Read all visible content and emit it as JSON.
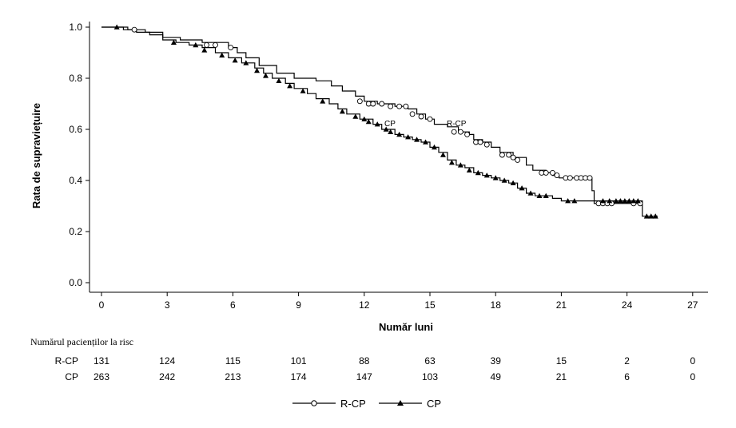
{
  "chart_data": {
    "type": "line",
    "title": "",
    "xlabel": "Număr luni",
    "ylabel": "Rata de supraviețuire",
    "xlim": [
      0,
      27
    ],
    "ylim": [
      0,
      1.0
    ],
    "x_ticks": [
      "0",
      "3",
      "6",
      "9",
      "12",
      "15",
      "18",
      "21",
      "24",
      "27"
    ],
    "y_ticks": [
      "0.0",
      "0.2",
      "0.4",
      "0.6",
      "0.8",
      "1.0"
    ],
    "legend": {
      "placement": "bottom-center"
    },
    "series": [
      {
        "name": "R-CP",
        "marker": "open-circle",
        "color": "#000000",
        "label_at": [
          15.8,
          0.62
        ],
        "steps": [
          [
            0,
            1.0
          ],
          [
            1.2,
            0.99
          ],
          [
            2.0,
            0.98
          ],
          [
            2.8,
            0.96
          ],
          [
            3.6,
            0.95
          ],
          [
            4.6,
            0.94
          ],
          [
            5.8,
            0.92
          ],
          [
            6.2,
            0.9
          ],
          [
            6.6,
            0.88
          ],
          [
            7.2,
            0.85
          ],
          [
            8.0,
            0.82
          ],
          [
            8.8,
            0.8
          ],
          [
            9.8,
            0.79
          ],
          [
            10.5,
            0.77
          ],
          [
            11.0,
            0.75
          ],
          [
            11.6,
            0.73
          ],
          [
            12.0,
            0.71
          ],
          [
            12.6,
            0.7
          ],
          [
            13.4,
            0.69
          ],
          [
            14.0,
            0.68
          ],
          [
            14.4,
            0.66
          ],
          [
            14.8,
            0.64
          ],
          [
            15.2,
            0.62
          ],
          [
            15.8,
            0.61
          ],
          [
            16.3,
            0.59
          ],
          [
            16.8,
            0.58
          ],
          [
            17.0,
            0.56
          ],
          [
            17.4,
            0.55
          ],
          [
            17.8,
            0.53
          ],
          [
            18.2,
            0.51
          ],
          [
            18.8,
            0.49
          ],
          [
            19.4,
            0.46
          ],
          [
            19.7,
            0.44
          ],
          [
            20.3,
            0.43
          ],
          [
            20.6,
            0.42
          ],
          [
            20.9,
            0.41
          ],
          [
            22.4,
            0.36
          ],
          [
            22.5,
            0.31
          ],
          [
            24.7,
            0.31
          ]
        ],
        "censored": [
          [
            1.5,
            0.99
          ],
          [
            4.8,
            0.93
          ],
          [
            5.2,
            0.93
          ],
          [
            5.9,
            0.92
          ],
          [
            11.8,
            0.71
          ],
          [
            12.2,
            0.7
          ],
          [
            12.4,
            0.7
          ],
          [
            12.8,
            0.7
          ],
          [
            13.2,
            0.69
          ],
          [
            13.6,
            0.69
          ],
          [
            13.9,
            0.69
          ],
          [
            14.2,
            0.66
          ],
          [
            14.6,
            0.65
          ],
          [
            15.0,
            0.64
          ],
          [
            16.1,
            0.59
          ],
          [
            16.4,
            0.59
          ],
          [
            16.7,
            0.58
          ],
          [
            17.1,
            0.55
          ],
          [
            17.3,
            0.55
          ],
          [
            17.6,
            0.54
          ],
          [
            18.3,
            0.5
          ],
          [
            18.6,
            0.5
          ],
          [
            18.8,
            0.49
          ],
          [
            19.0,
            0.48
          ],
          [
            20.1,
            0.43
          ],
          [
            20.3,
            0.43
          ],
          [
            20.6,
            0.43
          ],
          [
            20.8,
            0.42
          ],
          [
            21.2,
            0.41
          ],
          [
            21.4,
            0.41
          ],
          [
            21.7,
            0.41
          ],
          [
            21.9,
            0.41
          ],
          [
            22.1,
            0.41
          ],
          [
            22.3,
            0.41
          ],
          [
            22.7,
            0.31
          ],
          [
            22.9,
            0.31
          ],
          [
            23.1,
            0.31
          ],
          [
            23.3,
            0.31
          ],
          [
            24.3,
            0.31
          ],
          [
            24.6,
            0.31
          ]
        ]
      },
      {
        "name": "CP",
        "marker": "filled-triangle",
        "color": "#000000",
        "label_at": [
          13.0,
          0.62
        ],
        "steps": [
          [
            0,
            1.0
          ],
          [
            0.5,
            1.0
          ],
          [
            1.0,
            0.99
          ],
          [
            1.6,
            0.98
          ],
          [
            2.2,
            0.97
          ],
          [
            2.8,
            0.95
          ],
          [
            3.4,
            0.94
          ],
          [
            4.0,
            0.93
          ],
          [
            4.6,
            0.92
          ],
          [
            5.2,
            0.9
          ],
          [
            5.8,
            0.88
          ],
          [
            6.4,
            0.86
          ],
          [
            7.0,
            0.84
          ],
          [
            7.4,
            0.82
          ],
          [
            7.8,
            0.8
          ],
          [
            8.4,
            0.78
          ],
          [
            8.8,
            0.76
          ],
          [
            9.4,
            0.74
          ],
          [
            9.8,
            0.72
          ],
          [
            10.4,
            0.7
          ],
          [
            10.8,
            0.68
          ],
          [
            11.2,
            0.66
          ],
          [
            11.8,
            0.64
          ],
          [
            12.4,
            0.62
          ],
          [
            12.8,
            0.6
          ],
          [
            13.4,
            0.58
          ],
          [
            13.8,
            0.57
          ],
          [
            14.2,
            0.56
          ],
          [
            14.6,
            0.55
          ],
          [
            15.0,
            0.53
          ],
          [
            15.4,
            0.51
          ],
          [
            15.8,
            0.48
          ],
          [
            16.2,
            0.46
          ],
          [
            16.6,
            0.45
          ],
          [
            17.0,
            0.43
          ],
          [
            17.4,
            0.42
          ],
          [
            17.8,
            0.41
          ],
          [
            18.2,
            0.4
          ],
          [
            18.6,
            0.39
          ],
          [
            19.0,
            0.37
          ],
          [
            19.4,
            0.35
          ],
          [
            19.8,
            0.34
          ],
          [
            20.6,
            0.33
          ],
          [
            21.0,
            0.32
          ],
          [
            22.6,
            0.32
          ],
          [
            24.6,
            0.32
          ],
          [
            24.7,
            0.26
          ],
          [
            25.4,
            0.26
          ]
        ],
        "censored": [
          [
            0.7,
            1.0
          ],
          [
            3.3,
            0.94
          ],
          [
            4.3,
            0.93
          ],
          [
            4.7,
            0.91
          ],
          [
            5.5,
            0.89
          ],
          [
            6.1,
            0.87
          ],
          [
            6.6,
            0.86
          ],
          [
            7.1,
            0.83
          ],
          [
            7.5,
            0.81
          ],
          [
            8.1,
            0.79
          ],
          [
            8.6,
            0.77
          ],
          [
            9.2,
            0.75
          ],
          [
            10.1,
            0.71
          ],
          [
            11.0,
            0.67
          ],
          [
            11.6,
            0.65
          ],
          [
            12.0,
            0.64
          ],
          [
            12.2,
            0.63
          ],
          [
            12.6,
            0.62
          ],
          [
            13.0,
            0.6
          ],
          [
            13.2,
            0.59
          ],
          [
            13.6,
            0.58
          ],
          [
            14.0,
            0.57
          ],
          [
            14.4,
            0.56
          ],
          [
            14.8,
            0.55
          ],
          [
            15.2,
            0.53
          ],
          [
            15.6,
            0.5
          ],
          [
            16.0,
            0.47
          ],
          [
            16.4,
            0.46
          ],
          [
            16.8,
            0.44
          ],
          [
            17.2,
            0.43
          ],
          [
            17.6,
            0.42
          ],
          [
            18.0,
            0.41
          ],
          [
            18.4,
            0.4
          ],
          [
            18.8,
            0.39
          ],
          [
            19.2,
            0.37
          ],
          [
            19.6,
            0.35
          ],
          [
            20.0,
            0.34
          ],
          [
            20.3,
            0.34
          ],
          [
            21.3,
            0.32
          ],
          [
            21.6,
            0.32
          ],
          [
            22.9,
            0.32
          ],
          [
            23.2,
            0.32
          ],
          [
            23.5,
            0.32
          ],
          [
            23.7,
            0.32
          ],
          [
            23.9,
            0.32
          ],
          [
            24.1,
            0.32
          ],
          [
            24.3,
            0.32
          ],
          [
            24.5,
            0.32
          ],
          [
            24.9,
            0.26
          ],
          [
            25.1,
            0.26
          ],
          [
            25.3,
            0.26
          ]
        ]
      }
    ]
  },
  "risk_table": {
    "title": "Numărul pacienților la risc",
    "rows": [
      {
        "label": "R-CP",
        "values": [
          "131",
          "124",
          "115",
          "101",
          "88",
          "63",
          "39",
          "15",
          "2",
          "0"
        ]
      },
      {
        "label": "CP",
        "values": [
          "263",
          "242",
          "213",
          "174",
          "147",
          "103",
          "49",
          "21",
          "6",
          "0"
        ]
      }
    ]
  }
}
